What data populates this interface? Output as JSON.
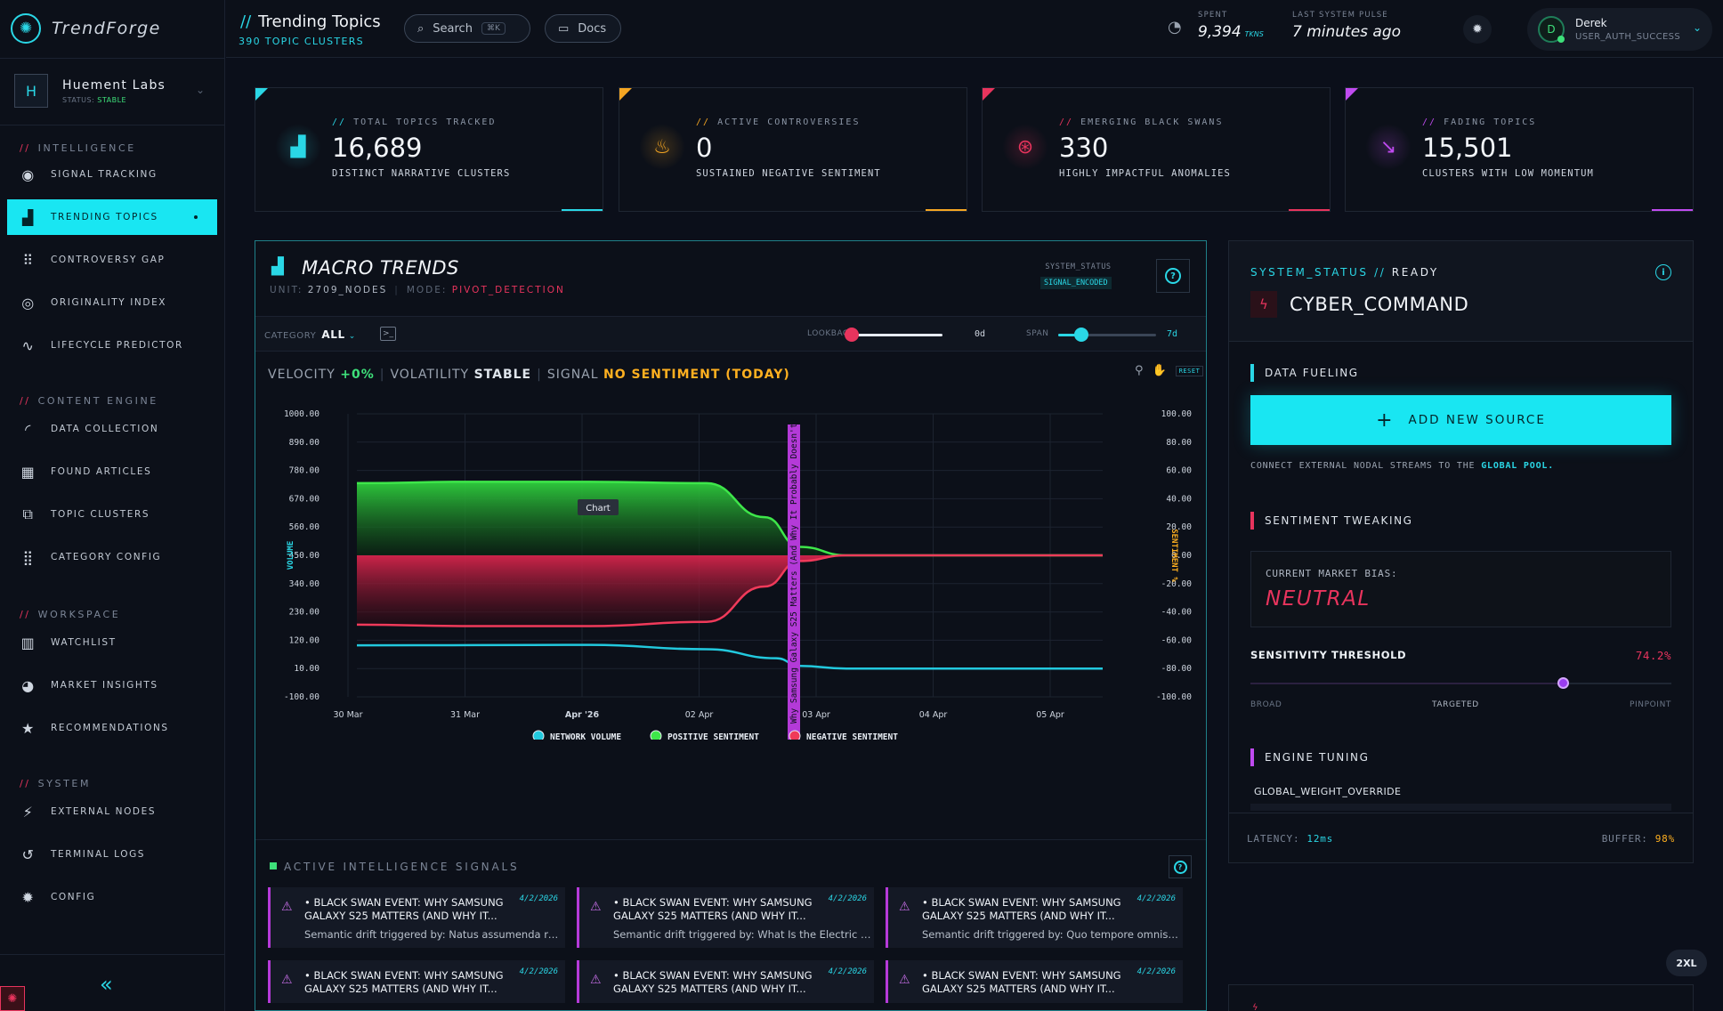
{
  "brand": {
    "name": "TrendForge"
  },
  "org": {
    "initial": "H",
    "name": "Huement Labs",
    "status_label": "STATUS:",
    "status_value": "STABLE"
  },
  "sidebar": {
    "sections": [
      {
        "title": "INTELLIGENCE",
        "items": [
          {
            "label": "SIGNAL TRACKING",
            "icon": "signal-icon"
          },
          {
            "label": "TRENDING TOPICS",
            "icon": "bar-chart-icon",
            "active": true
          },
          {
            "label": "CONTROVERSY GAP",
            "icon": "scatter-icon"
          },
          {
            "label": "ORIGINALITY INDEX",
            "icon": "fingerprint-icon"
          },
          {
            "label": "LIFECYCLE PREDICTOR",
            "icon": "pulse-icon"
          }
        ]
      },
      {
        "title": "CONTENT ENGINE",
        "items": [
          {
            "label": "DATA COLLECTION",
            "icon": "rss-icon"
          },
          {
            "label": "FOUND ARTICLES",
            "icon": "table-icon"
          },
          {
            "label": "TOPIC CLUSTERS",
            "icon": "clusters-icon"
          },
          {
            "label": "CATEGORY CONFIG",
            "icon": "grid-icon"
          }
        ]
      },
      {
        "title": "WORKSPACE",
        "items": [
          {
            "label": "WATCHLIST",
            "icon": "kanban-icon"
          },
          {
            "label": "MARKET INSIGHTS",
            "icon": "brain-icon"
          },
          {
            "label": "RECOMMENDATIONS",
            "icon": "star-icon"
          }
        ]
      },
      {
        "title": "SYSTEM",
        "items": [
          {
            "label": "EXTERNAL NODES",
            "icon": "plug-icon"
          },
          {
            "label": "TERMINAL LOGS",
            "icon": "history-icon"
          },
          {
            "label": "CONFIG",
            "icon": "gear-icon"
          }
        ]
      }
    ]
  },
  "topbar": {
    "title": "Trending Topics",
    "subtitle": "390 TOPIC CLUSTERS",
    "search_label": "Search",
    "search_kbd": "⌘K",
    "docs_label": "Docs",
    "spent_label": "SPENT",
    "spent_value": "9,394",
    "spent_unit": "TKNS",
    "pulse_label": "LAST SYSTEM PULSE",
    "pulse_value": "7 minutes ago",
    "user_initial": "D",
    "user_name": "Derek",
    "user_status": "USER_AUTH_SUCCESS"
  },
  "kpis": [
    {
      "label": "TOTAL TOPICS TRACKED",
      "value": "16,689",
      "sub": "DISTINCT NARRATIVE CLUSTERS",
      "color": "#2ad7e6",
      "icon": "bar-chart-icon"
    },
    {
      "label": "ACTIVE CONTROVERSIES",
      "value": "0",
      "sub": "SUSTAINED NEGATIVE SENTIMENT",
      "color": "#f5a623",
      "icon": "flame-icon"
    },
    {
      "label": "EMERGING BLACK SWANS",
      "value": "330",
      "sub": "HIGHLY IMPACTFUL ANOMALIES",
      "color": "#e8345d",
      "icon": "target-icon"
    },
    {
      "label": "FADING TOPICS",
      "value": "15,501",
      "sub": "CLUSTERS WITH LOW MOMENTUM",
      "color": "#c04bf0",
      "icon": "trend-down-icon"
    }
  ],
  "macro": {
    "title": "MACRO TRENDS",
    "unit_label": "UNIT:",
    "unit_value": "2709_NODES",
    "mode_label": "MODE:",
    "mode_value": "PIVOT_DETECTION",
    "sys_label": "SYSTEM_STATUS",
    "sys_value": "SIGNAL_ENCODED",
    "category_label": "CATEGORY",
    "category_value": "ALL",
    "lookback_label": "LOOKBACK",
    "lookback_value": "0d",
    "span_label": "SPAN",
    "span_value": "7d",
    "reset_label": "RESET",
    "velocity_label": "VELOCITY",
    "velocity_value": "+0%",
    "volatility_label": "VOLATILITY",
    "volatility_value": "STABLE",
    "signal_label": "SIGNAL",
    "signal_value": "NO SENTIMENT (TODAY)"
  },
  "chart_data": {
    "type": "area",
    "x_ticks": [
      "30 Mar",
      "31 Mar",
      "Apr '26",
      "02 Apr",
      "03 Apr",
      "04 Apr",
      "05 Apr"
    ],
    "x_bold": "Apr '26",
    "y_left_ticks": [
      "1000.00",
      "890.00",
      "780.00",
      "670.00",
      "560.00",
      "450.00",
      "340.00",
      "230.00",
      "120.00",
      "10.00",
      "-100.00"
    ],
    "y_left_label": "VOLUME",
    "y_right_ticks": [
      "100.00",
      "80.00",
      "60.00",
      "40.00",
      "20.00",
      "0.00",
      "-20.00",
      "-40.00",
      "-60.00",
      "-80.00",
      "-100.00"
    ],
    "y_right_label": "SENTIMENT %",
    "ylim_left": [
      -100,
      1000
    ],
    "ylim_right": [
      -100,
      100
    ],
    "x_range": [
      0,
      6.4
    ],
    "series": [
      {
        "name": "NETWORK_VOLUME",
        "color": "#22c9de",
        "axis": "left",
        "points": [
          [
            0,
            100
          ],
          [
            1,
            101
          ],
          [
            2,
            102
          ],
          [
            3,
            85
          ],
          [
            3.6,
            50
          ],
          [
            3.8,
            20
          ],
          [
            4.2,
            10
          ],
          [
            5,
            10
          ],
          [
            6.4,
            10
          ]
        ]
      },
      {
        "name": "POSITIVE_SENTIMENT",
        "color": "#3ee64a",
        "axis": "right",
        "points": [
          [
            0,
            51
          ],
          [
            1,
            52
          ],
          [
            2,
            52
          ],
          [
            3,
            51
          ],
          [
            3.5,
            27
          ],
          [
            3.8,
            6
          ],
          [
            4.2,
            0
          ],
          [
            5,
            0
          ],
          [
            6.4,
            0
          ]
        ]
      },
      {
        "name": "NEGATIVE_SENTIMENT",
        "color": "#f03a5a",
        "axis": "right",
        "points": [
          [
            0,
            -49
          ],
          [
            1,
            -50
          ],
          [
            2,
            -50
          ],
          [
            3,
            -47
          ],
          [
            3.5,
            -22
          ],
          [
            3.8,
            -4
          ],
          [
            4.2,
            0
          ],
          [
            5,
            0
          ],
          [
            6.4,
            0
          ]
        ]
      }
    ],
    "event_label": "EVENT: Why Samsung Galaxy S25 Matters (And Why It Probably Doesn't)",
    "event_x": 3.75,
    "tooltip": "Chart",
    "grid": true,
    "legend_position": "bottom"
  },
  "signals_title": "ACTIVE INTELLIGENCE SIGNALS",
  "signals": [
    {
      "title": "• BLACK SWAN EVENT: WHY SAMSUNG GALAXY S25 MATTERS (AND WHY IT...",
      "date": "4/2/2026",
      "sub": "Semantic drift triggered by: Natus assumenda rer..."
    },
    {
      "title": "• BLACK SWAN EVENT: WHY SAMSUNG GALAXY S25 MATTERS (AND WHY IT...",
      "date": "4/2/2026",
      "sub": "Semantic drift triggered by: What Is the Electric Co..."
    },
    {
      "title": "• BLACK SWAN EVENT: WHY SAMSUNG GALAXY S25 MATTERS (AND WHY IT...",
      "date": "4/2/2026",
      "sub": "Semantic drift triggered by: Quo tempore omnis vo..."
    },
    {
      "title": "• BLACK SWAN EVENT: WHY SAMSUNG GALAXY S25 MATTERS (AND WHY IT...",
      "date": "4/2/2026",
      "sub": ""
    },
    {
      "title": "• BLACK SWAN EVENT: WHY SAMSUNG GALAXY S25 MATTERS (AND WHY IT...",
      "date": "4/2/2026",
      "sub": ""
    },
    {
      "title": "• BLACK SWAN EVENT: WHY SAMSUNG GALAXY S25 MATTERS (AND WHY IT...",
      "date": "4/2/2026",
      "sub": ""
    }
  ],
  "panel": {
    "status_prefix": "SYSTEM_STATUS //",
    "status_value": "READY",
    "command": "CYBER_COMMAND",
    "data_fueling": "DATA FUELING",
    "add_source": "ADD NEW SOURCE",
    "connect_text": "CONNECT EXTERNAL NODAL STREAMS TO THE",
    "connect_highlight": "GLOBAL POOL.",
    "sentiment_tweaking": "SENTIMENT TWEAKING",
    "bias_label": "CURRENT MARKET BIAS:",
    "bias_value": "NEUTRAL",
    "sensitivity_label": "SENSITIVITY THRESHOLD",
    "sensitivity_value": "74.2%",
    "sensitivity_level": 0.742,
    "scale_broad": "BROAD",
    "scale_targeted": "TARGETED",
    "scale_pinpoint": "PINPOINT",
    "engine_tuning": "ENGINE TUNING",
    "global_weight": "GLOBAL_WEIGHT_OVERRIDE",
    "latency_label": "LATENCY:",
    "latency_value": "12ms",
    "buffer_label": "BUFFER:",
    "buffer_value": "98%"
  },
  "size_chip": "2XL"
}
